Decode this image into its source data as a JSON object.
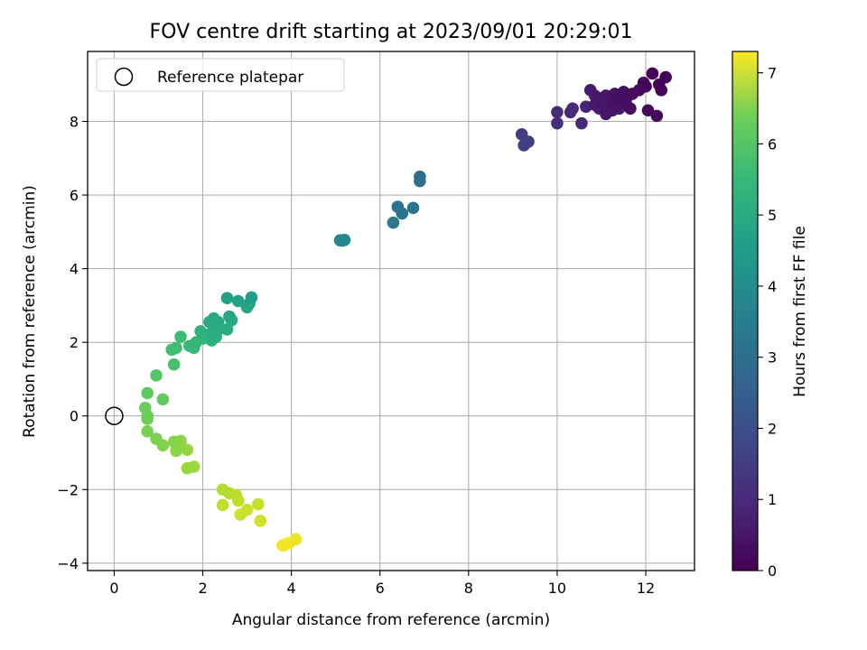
{
  "chart_data": {
    "type": "scatter",
    "title": "FOV centre drift starting at 2023/09/01 20:29:01",
    "xlabel": "Angular distance from reference (arcmin)",
    "ylabel": "Rotation from reference (arcmin)",
    "xlim": [
      -0.6,
      13.1
    ],
    "ylim": [
      -4.2,
      9.9
    ],
    "xticks": [
      0,
      2,
      4,
      6,
      8,
      10,
      12
    ],
    "yticks": [
      -4,
      -2,
      0,
      2,
      4,
      6,
      8
    ],
    "grid": true,
    "legend": {
      "placement": "top-left",
      "entries": [
        "Reference platepar"
      ]
    },
    "reference_point": {
      "x": 0,
      "y": 0,
      "label": "Reference platepar"
    },
    "colorbar": {
      "label": "Hours from first FF file",
      "range": [
        0,
        7.3
      ],
      "ticks": [
        0,
        1,
        2,
        3,
        4,
        5,
        6,
        7
      ],
      "colormap": "viridis"
    },
    "series": [
      {
        "points": [
          {
            "x": 12.45,
            "y": 9.2,
            "c": 0.02
          },
          {
            "x": 12.15,
            "y": 9.3,
            "c": 0.05
          },
          {
            "x": 12.3,
            "y": 9.0,
            "c": 0.08
          },
          {
            "x": 12.35,
            "y": 8.85,
            "c": 0.1
          },
          {
            "x": 12.0,
            "y": 8.95,
            "c": 0.12
          },
          {
            "x": 11.95,
            "y": 9.05,
            "c": 0.14
          },
          {
            "x": 12.25,
            "y": 8.15,
            "c": 0.16
          },
          {
            "x": 12.05,
            "y": 8.3,
            "c": 0.18
          },
          {
            "x": 11.85,
            "y": 8.85,
            "c": 0.2
          },
          {
            "x": 11.7,
            "y": 8.75,
            "c": 0.22
          },
          {
            "x": 11.6,
            "y": 8.7,
            "c": 0.25
          },
          {
            "x": 11.65,
            "y": 8.35,
            "c": 0.28
          },
          {
            "x": 11.5,
            "y": 8.8,
            "c": 0.3
          },
          {
            "x": 11.4,
            "y": 8.6,
            "c": 0.32
          },
          {
            "x": 11.3,
            "y": 8.75,
            "c": 0.34
          },
          {
            "x": 11.35,
            "y": 8.45,
            "c": 0.36
          },
          {
            "x": 11.5,
            "y": 8.5,
            "c": 0.38
          },
          {
            "x": 11.2,
            "y": 8.55,
            "c": 0.4
          },
          {
            "x": 11.1,
            "y": 8.7,
            "c": 0.42
          },
          {
            "x": 11.25,
            "y": 8.3,
            "c": 0.44
          },
          {
            "x": 11.1,
            "y": 8.2,
            "c": 0.46
          },
          {
            "x": 11.0,
            "y": 8.5,
            "c": 0.48
          },
          {
            "x": 10.9,
            "y": 8.65,
            "c": 0.5
          },
          {
            "x": 11.4,
            "y": 8.35,
            "c": 0.52
          },
          {
            "x": 10.85,
            "y": 8.45,
            "c": 0.54
          },
          {
            "x": 10.75,
            "y": 8.85,
            "c": 0.56
          },
          {
            "x": 10.95,
            "y": 8.35,
            "c": 0.58
          },
          {
            "x": 11.15,
            "y": 8.4,
            "c": 0.6
          },
          {
            "x": 11.3,
            "y": 8.6,
            "c": 0.62
          },
          {
            "x": 11.55,
            "y": 8.55,
            "c": 0.64
          },
          {
            "x": 11.05,
            "y": 8.6,
            "c": 0.66
          },
          {
            "x": 10.85,
            "y": 8.7,
            "c": 0.68
          },
          {
            "x": 10.65,
            "y": 8.4,
            "c": 0.72
          },
          {
            "x": 10.55,
            "y": 7.95,
            "c": 0.8
          },
          {
            "x": 10.35,
            "y": 8.35,
            "c": 0.85
          },
          {
            "x": 10.3,
            "y": 8.25,
            "c": 0.88
          },
          {
            "x": 10.0,
            "y": 8.25,
            "c": 0.92
          },
          {
            "x": 10.0,
            "y": 7.95,
            "c": 0.98
          },
          {
            "x": 9.2,
            "y": 7.65,
            "c": 1.3
          },
          {
            "x": 9.35,
            "y": 7.45,
            "c": 1.35
          },
          {
            "x": 9.25,
            "y": 7.35,
            "c": 1.4
          },
          {
            "x": 6.9,
            "y": 6.5,
            "c": 2.6
          },
          {
            "x": 6.9,
            "y": 6.38,
            "c": 2.65
          },
          {
            "x": 6.4,
            "y": 5.68,
            "c": 2.75
          },
          {
            "x": 6.75,
            "y": 5.65,
            "c": 2.8
          },
          {
            "x": 6.5,
            "y": 5.5,
            "c": 2.85
          },
          {
            "x": 6.3,
            "y": 5.25,
            "c": 2.9
          },
          {
            "x": 5.1,
            "y": 4.77,
            "c": 3.4
          },
          {
            "x": 5.2,
            "y": 4.78,
            "c": 3.45
          },
          {
            "x": 5.15,
            "y": 4.76,
            "c": 3.5
          },
          {
            "x": 3.1,
            "y": 3.22,
            "c": 4.1
          },
          {
            "x": 2.55,
            "y": 3.2,
            "c": 4.15
          },
          {
            "x": 2.8,
            "y": 3.12,
            "c": 4.2
          },
          {
            "x": 3.05,
            "y": 3.05,
            "c": 4.25
          },
          {
            "x": 3.0,
            "y": 2.95,
            "c": 4.3
          },
          {
            "x": 2.6,
            "y": 2.7,
            "c": 4.35
          },
          {
            "x": 2.65,
            "y": 2.6,
            "c": 4.38
          },
          {
            "x": 2.25,
            "y": 2.65,
            "c": 4.4
          },
          {
            "x": 2.15,
            "y": 2.55,
            "c": 4.45
          },
          {
            "x": 2.35,
            "y": 2.55,
            "c": 4.48
          },
          {
            "x": 2.55,
            "y": 2.35,
            "c": 4.5
          },
          {
            "x": 2.35,
            "y": 2.35,
            "c": 4.55
          },
          {
            "x": 2.2,
            "y": 2.25,
            "c": 4.58
          },
          {
            "x": 2.3,
            "y": 2.15,
            "c": 4.6
          },
          {
            "x": 2.2,
            "y": 2.05,
            "c": 4.65
          },
          {
            "x": 1.95,
            "y": 2.3,
            "c": 4.7
          },
          {
            "x": 2.1,
            "y": 2.2,
            "c": 4.75
          },
          {
            "x": 2.0,
            "y": 2.1,
            "c": 4.8
          },
          {
            "x": 1.85,
            "y": 2.0,
            "c": 4.85
          },
          {
            "x": 1.7,
            "y": 1.9,
            "c": 4.9
          },
          {
            "x": 1.8,
            "y": 1.85,
            "c": 4.95
          },
          {
            "x": 1.5,
            "y": 2.15,
            "c": 5.0
          },
          {
            "x": 1.4,
            "y": 1.85,
            "c": 5.05
          },
          {
            "x": 1.3,
            "y": 1.8,
            "c": 5.1
          },
          {
            "x": 1.35,
            "y": 1.4,
            "c": 5.15
          },
          {
            "x": 0.95,
            "y": 1.1,
            "c": 5.35
          },
          {
            "x": 0.75,
            "y": 0.62,
            "c": 5.45
          },
          {
            "x": 1.1,
            "y": 0.45,
            "c": 5.5
          },
          {
            "x": 0.7,
            "y": 0.22,
            "c": 5.6
          },
          {
            "x": 0.75,
            "y": 0.0,
            "c": 5.65
          },
          {
            "x": 0.75,
            "y": -0.08,
            "c": 5.7
          },
          {
            "x": 0.75,
            "y": -0.42,
            "c": 5.78
          },
          {
            "x": 0.95,
            "y": -0.62,
            "c": 5.85
          },
          {
            "x": 1.1,
            "y": -0.8,
            "c": 5.9
          },
          {
            "x": 1.35,
            "y": -0.7,
            "c": 5.95
          },
          {
            "x": 1.5,
            "y": -0.68,
            "c": 6.0
          },
          {
            "x": 1.45,
            "y": -0.85,
            "c": 6.02
          },
          {
            "x": 1.4,
            "y": -0.95,
            "c": 6.05
          },
          {
            "x": 1.65,
            "y": -0.92,
            "c": 6.1
          },
          {
            "x": 1.65,
            "y": -1.42,
            "c": 6.15
          },
          {
            "x": 1.8,
            "y": -1.38,
            "c": 6.2
          },
          {
            "x": 2.45,
            "y": -2.0,
            "c": 6.45
          },
          {
            "x": 2.6,
            "y": -2.1,
            "c": 6.5
          },
          {
            "x": 2.75,
            "y": -2.15,
            "c": 6.55
          },
          {
            "x": 2.8,
            "y": -2.3,
            "c": 6.58
          },
          {
            "x": 2.45,
            "y": -2.42,
            "c": 6.6
          },
          {
            "x": 3.25,
            "y": -2.4,
            "c": 6.65
          },
          {
            "x": 3.0,
            "y": -2.55,
            "c": 6.7
          },
          {
            "x": 2.85,
            "y": -2.68,
            "c": 6.75
          },
          {
            "x": 3.3,
            "y": -2.85,
            "c": 6.8
          },
          {
            "x": 4.1,
            "y": -3.35,
            "c": 7.1
          },
          {
            "x": 3.95,
            "y": -3.45,
            "c": 7.15
          },
          {
            "x": 3.8,
            "y": -3.52,
            "c": 7.2
          },
          {
            "x": 3.85,
            "y": -3.5,
            "c": 7.25
          }
        ]
      }
    ]
  }
}
